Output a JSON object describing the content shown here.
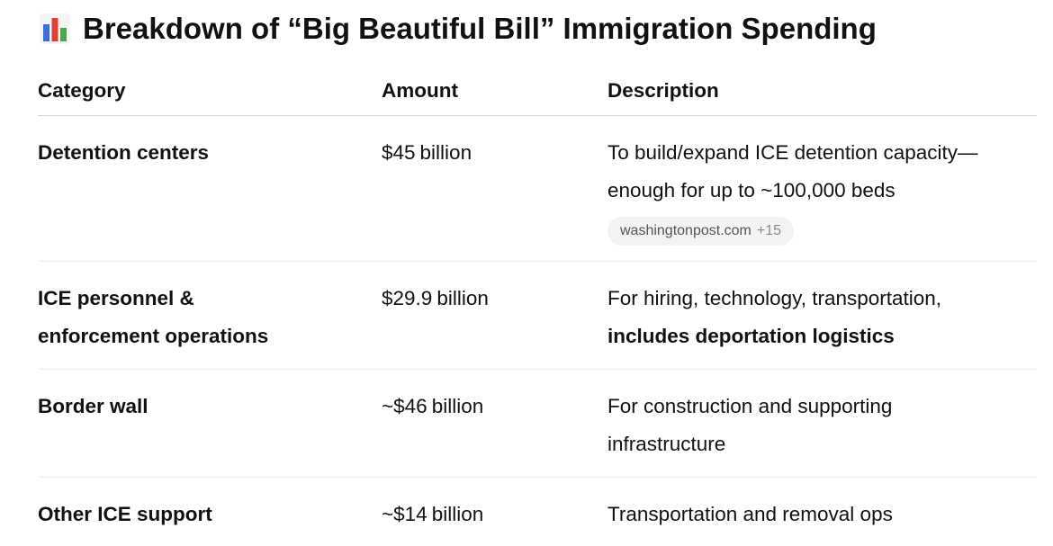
{
  "title": {
    "icon": "bar-chart-icon",
    "text": "Breakdown of “Big Beautiful Bill” Immigration Spending"
  },
  "table": {
    "headers": [
      "Category",
      "Amount",
      "Description"
    ],
    "rows": [
      {
        "category": "Detention centers",
        "amount_value": "$45",
        "amount_unit": "billion",
        "description_line1": "To build/expand ICE detention capacity—",
        "description_line2": "enough for up to ~100,000 beds",
        "source": "washingtonpost.com",
        "source_count": "+15"
      },
      {
        "category_line1": "ICE personnel &",
        "category_line2": "enforcement operations",
        "amount_value": "$29.9",
        "amount_unit": "billion",
        "description_line1": "For hiring, technology, transportation,",
        "description_line2_bold": "includes deportation logistics"
      },
      {
        "category": "Border wall",
        "amount_value": "~$46",
        "amount_unit": "billion",
        "description_line1": "For construction and supporting",
        "description_line2": "infrastructure"
      },
      {
        "category": "Other ICE support",
        "amount_value": "~$14",
        "amount_unit": "billion",
        "description_line1": "Transportation and removal ops"
      }
    ]
  },
  "colors": {
    "text": "#111111",
    "chip_bg": "#f3f3f3",
    "chip_text": "#555555",
    "divider": "#ececec",
    "icon_blue": "#3b6fd8",
    "icon_red": "#e0402f",
    "icon_green": "#3fae49"
  }
}
